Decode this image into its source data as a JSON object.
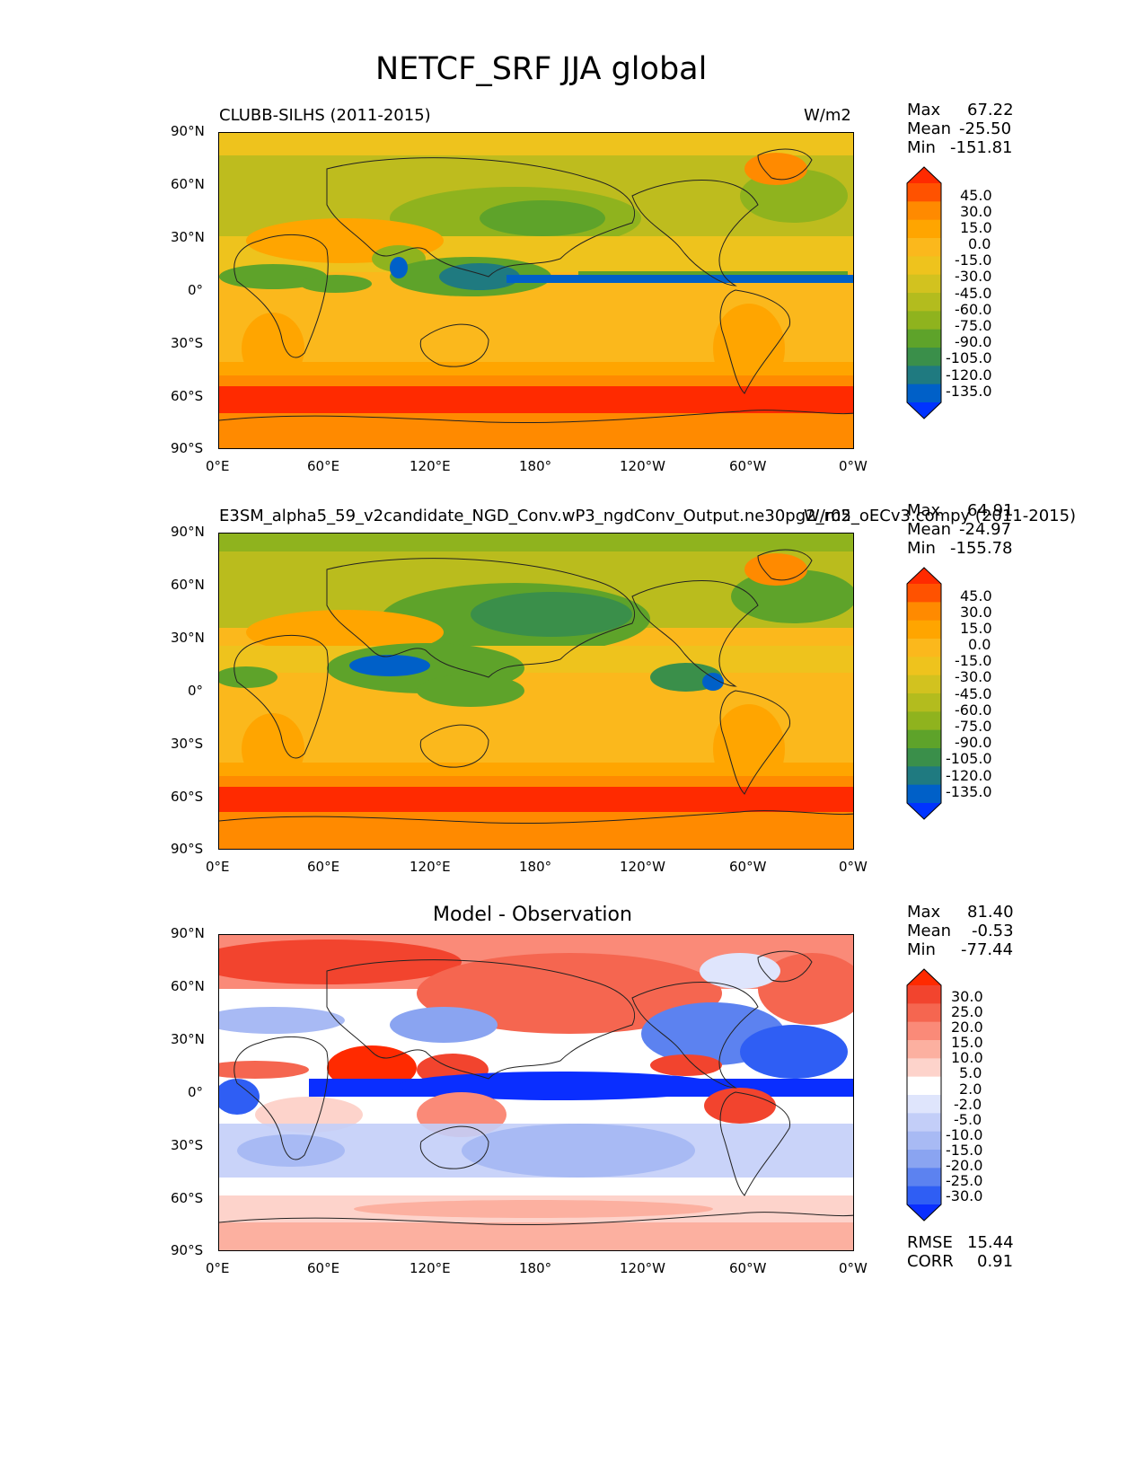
{
  "title": "NETCF_SRF JJA global",
  "lat_ticks": [
    "90°N",
    "60°N",
    "30°N",
    "0°",
    "30°S",
    "60°S",
    "90°S"
  ],
  "lon_ticks": [
    "0°E",
    "60°E",
    "120°E",
    "180°",
    "120°W",
    "60°W",
    "0°W"
  ],
  "panels": [
    {
      "left_title": "CLUBB-SILHS (2011-2015)",
      "right_title": "W/m2",
      "stats": {
        "max_label": "Max",
        "max": "67.22",
        "mean_label": "Mean",
        "mean": "-25.50",
        "min_label": "Min",
        "min": "-151.81"
      },
      "colorbar_labels": [
        "45.0",
        "30.0",
        "15.0",
        "0.0",
        "-15.0",
        "-30.0",
        "-45.0",
        "-60.0",
        "-75.0",
        "-90.0",
        "-105.0",
        "-120.0",
        "-135.0"
      ]
    },
    {
      "left_title": "E3SM_alpha5_59_v2candidate_NGD_Conv.wP3_ngdConv_Output.ne30pg2_r05_oECv3.compy (2011-2015)",
      "right_title": "W/m2",
      "stats": {
        "max_label": "Max",
        "max": "64.91",
        "mean_label": "Mean",
        "mean": "-24.97",
        "min_label": "Min",
        "min": "-155.78"
      },
      "colorbar_labels": [
        "45.0",
        "30.0",
        "15.0",
        "0.0",
        "-15.0",
        "-30.0",
        "-45.0",
        "-60.0",
        "-75.0",
        "-90.0",
        "-105.0",
        "-120.0",
        "-135.0"
      ]
    },
    {
      "center_title": "Model - Observation",
      "stats": {
        "max_label": "Max",
        "max": "81.40",
        "mean_label": "Mean",
        "mean": "-0.53",
        "min_label": "Min",
        "min": "-77.44"
      },
      "colorbar_labels": [
        "30.0",
        "25.0",
        "20.0",
        "15.0",
        "10.0",
        "5.0",
        "2.0",
        "-2.0",
        "-5.0",
        "-10.0",
        "-15.0",
        "-20.0",
        "-25.0",
        "-30.0"
      ],
      "metrics": {
        "rmse_label": "RMSE",
        "rmse": "15.44",
        "corr_label": "CORR",
        "corr": "0.91"
      }
    }
  ],
  "colors": {
    "field_cmap": [
      "#ff2a00",
      "#ff5200",
      "#ff8a00",
      "#ffa500",
      "#fbb81c",
      "#eec31d",
      "#d2c21f",
      "#b3bc1e",
      "#8fb31e",
      "#5ea32a",
      "#3a8f4a",
      "#1f7a80",
      "#0060c8",
      "#0033ff"
    ],
    "diff_cmap": [
      "#ff2a00",
      "#f2442e",
      "#f56650",
      "#fa8a78",
      "#fcb0a0",
      "#fdd3cb",
      "#ffffff",
      "#dfe5fc",
      "#c3cef8",
      "#a8baf4",
      "#8aa4f1",
      "#5c82f0",
      "#2f5ef4",
      "#0a2eff"
    ]
  }
}
